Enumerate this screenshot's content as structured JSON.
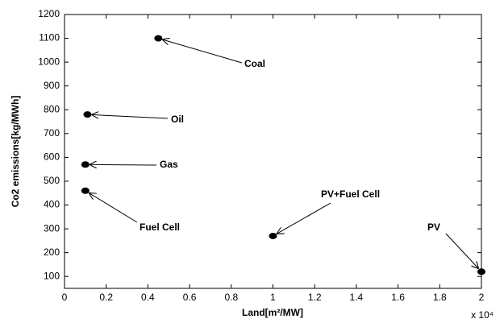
{
  "chart_data": {
    "type": "scatter",
    "x_label": "Land[m²/MW]",
    "y_label": "Co2 emissions[kg/MWh]",
    "x_exponent": "x 10⁴",
    "x": [
      0.45,
      0.11,
      0.1,
      0.1,
      1.0,
      2.0
    ],
    "values": [
      1100,
      780,
      570,
      460,
      270,
      120
    ],
    "point_labels": [
      "Coal",
      "Oil",
      "Gas",
      "Fuel Cell",
      "PV+Fuel Cell",
      "PV"
    ],
    "color": "#000000",
    "xlim": [
      0,
      2
    ],
    "xticks": [
      0,
      0.2,
      0.4,
      0.6,
      0.8,
      1,
      1.2,
      1.4,
      1.6,
      1.8,
      2
    ],
    "ylim": [
      50,
      1200
    ],
    "yticks": [
      100,
      200,
      300,
      400,
      500,
      600,
      700,
      800,
      900,
      1000,
      1100,
      1200
    ]
  }
}
